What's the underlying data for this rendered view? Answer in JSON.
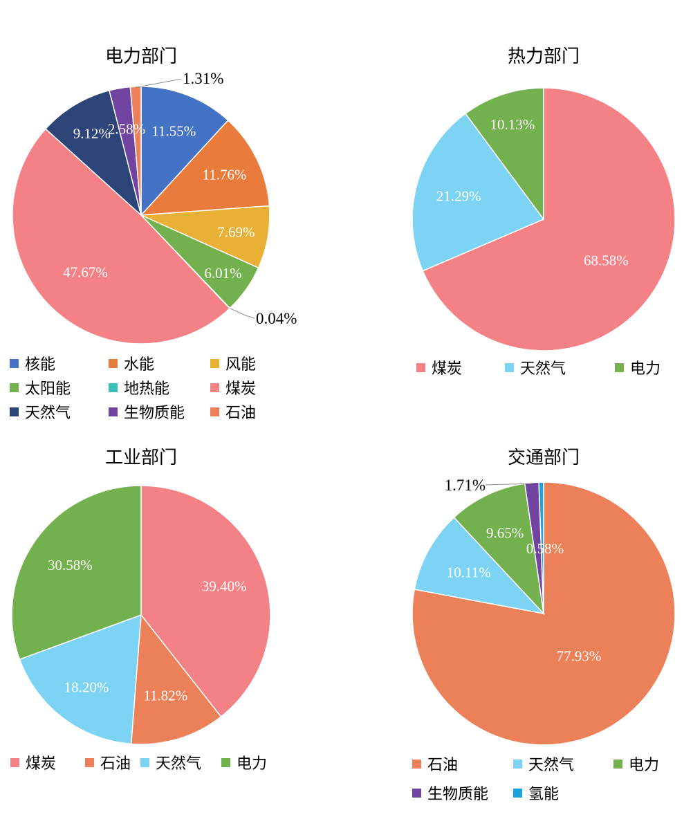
{
  "colors": {
    "核能": "#4472C4",
    "水能": "#E97C3D",
    "风能": "#E8B135",
    "太阳能": "#72B14D",
    "地热能": "#3BBFB9",
    "煤炭": "#F48186",
    "天然气_dark": "#2D4478",
    "生物质能": "#7044A0",
    "石油": "#EC8058",
    "天然气": "#7DD3F3",
    "电力": "#72B14D",
    "氢能": "#1FA3DC"
  },
  "chart_data": [
    {
      "type": "pie",
      "title": "电力部门",
      "slices": [
        {
          "label": "核能",
          "value": 11.55,
          "display": "11.55%",
          "color": "#4472C4"
        },
        {
          "label": "水能",
          "value": 11.76,
          "display": "11.76%",
          "color": "#E97C3D"
        },
        {
          "label": "风能",
          "value": 7.69,
          "display": "7.69%",
          "color": "#E8B135"
        },
        {
          "label": "太阳能",
          "value": 6.01,
          "display": "6.01%",
          "color": "#72B14D"
        },
        {
          "label": "地热能",
          "value": 0.04,
          "display": "0.04%",
          "color": "#3BBFB9"
        },
        {
          "label": "煤炭",
          "value": 47.67,
          "display": "47.67%",
          "color": "#F48186"
        },
        {
          "label": "天然气",
          "value": 9.12,
          "display": "9.12%",
          "color": "#2D4478"
        },
        {
          "label": "生物质能",
          "value": 2.58,
          "display": "2.58%",
          "color": "#7044A0"
        },
        {
          "label": "石油",
          "value": 1.31,
          "display": "1.31%",
          "color": "#EC8058"
        }
      ],
      "legend": [
        "核能",
        "水能",
        "风能",
        "太阳能",
        "地热能",
        "煤炭",
        "天然气",
        "生物质能",
        "石油"
      ]
    },
    {
      "type": "pie",
      "title": "热力部门",
      "slices": [
        {
          "label": "煤炭",
          "value": 68.58,
          "display": "68.58%",
          "color": "#F48186"
        },
        {
          "label": "天然气",
          "value": 21.29,
          "display": "21.29%",
          "color": "#7DD3F3"
        },
        {
          "label": "电力",
          "value": 10.13,
          "display": "10.13%",
          "color": "#72B14D"
        }
      ],
      "legend": [
        "煤炭",
        "天然气",
        "电力"
      ]
    },
    {
      "type": "pie",
      "title": "工业部门",
      "slices": [
        {
          "label": "煤炭",
          "value": 39.4,
          "display": "39.40%",
          "color": "#F48186"
        },
        {
          "label": "石油",
          "value": 11.82,
          "display": "11.82%",
          "color": "#EC8058"
        },
        {
          "label": "天然气",
          "value": 18.2,
          "display": "18.20%",
          "color": "#7DD3F3"
        },
        {
          "label": "电力",
          "value": 30.58,
          "display": "30.58%",
          "color": "#72B14D"
        }
      ],
      "legend": [
        "煤炭",
        "石油",
        "天然气",
        "电力"
      ]
    },
    {
      "type": "pie",
      "title": "交通部门",
      "slices": [
        {
          "label": "石油",
          "value": 77.93,
          "display": "77.93%",
          "color": "#EC8058"
        },
        {
          "label": "天然气",
          "value": 10.11,
          "display": "10.11%",
          "color": "#7DD3F3"
        },
        {
          "label": "电力",
          "value": 9.65,
          "display": "9.65%",
          "color": "#72B14D"
        },
        {
          "label": "生物质能",
          "value": 1.71,
          "display": "1.71%",
          "color": "#7044A0"
        },
        {
          "label": "氢能",
          "value": 0.58,
          "display": "0.58%",
          "color": "#1FA3DC"
        }
      ],
      "legend": [
        "石油",
        "天然气",
        "电力",
        "生物质能",
        "氢能"
      ]
    }
  ]
}
